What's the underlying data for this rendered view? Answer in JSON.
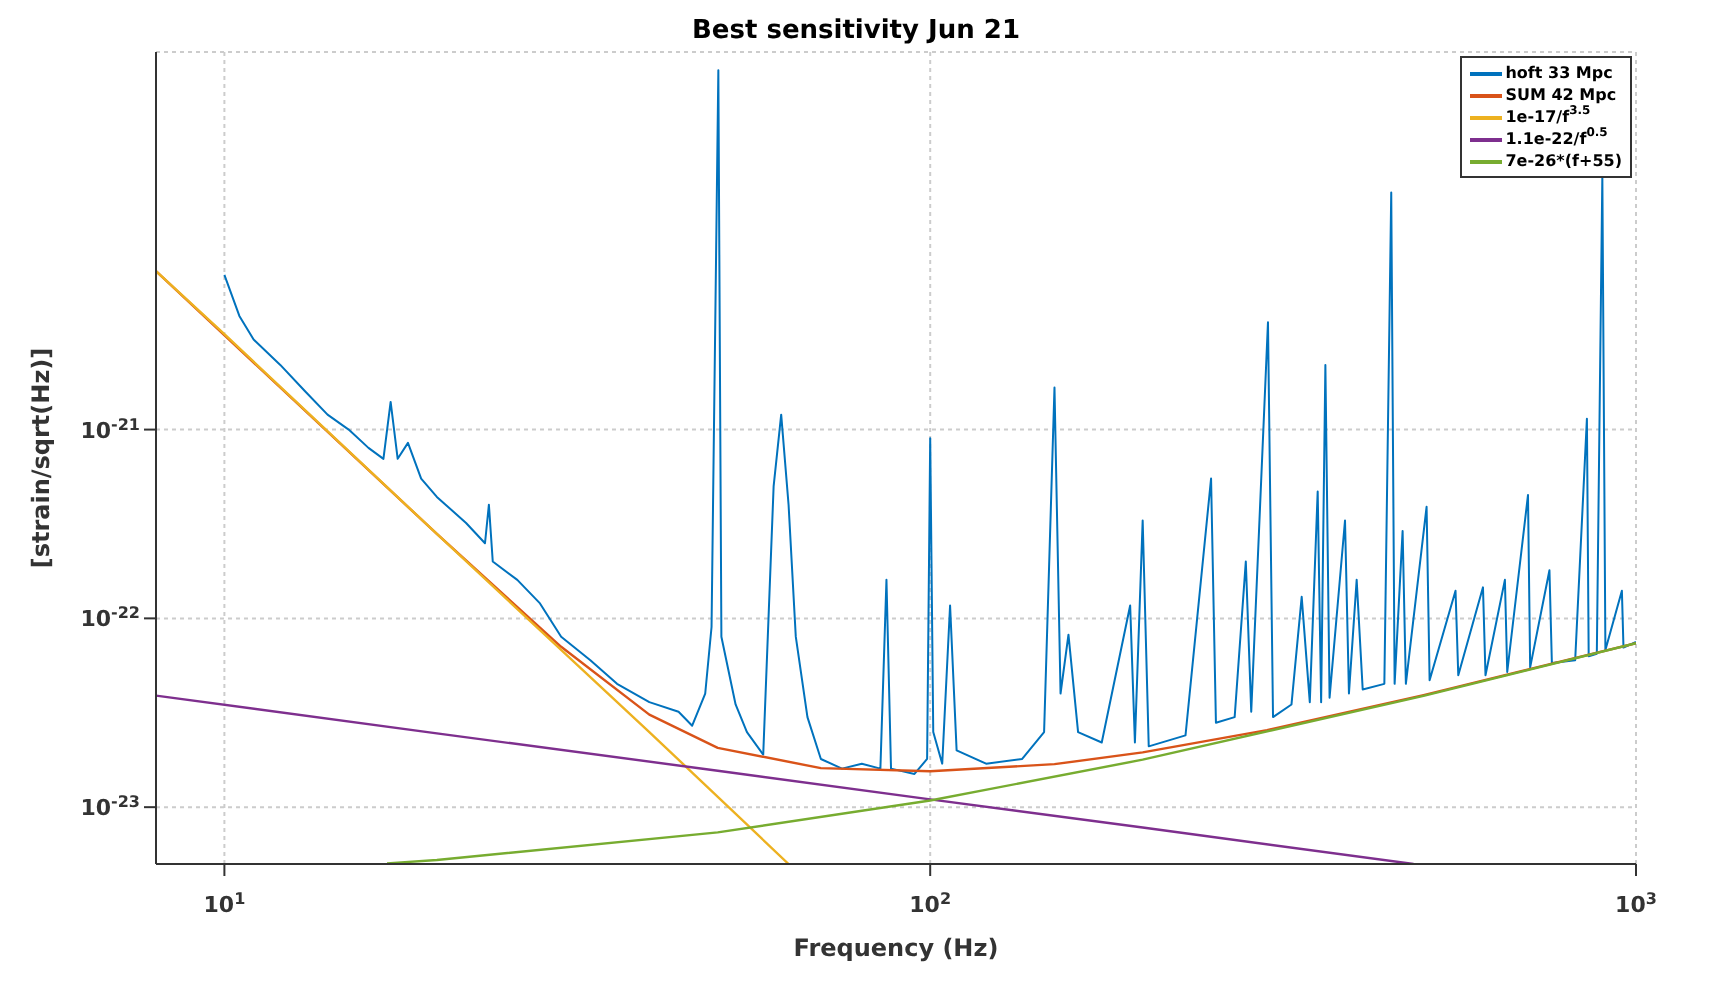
{
  "chart_data": {
    "type": "line",
    "title": "Best sensitivity Jun 21",
    "xlabel": "Frequency (Hz)",
    "ylabel": "[strain/sqrt(Hz)]",
    "log": "xy",
    "grid": true,
    "legend": "top right",
    "line_style": "solid",
    "marker": "none",
    "xlim": [
      8,
      1000
    ],
    "xticks": [
      {
        "value": 10,
        "label": "10$^{1}$"
      },
      {
        "value": 100,
        "label": "10$^{2}$"
      },
      {
        "value": 1000,
        "label": "10$^{3}$"
      }
    ],
    "ylim": [
      5e-24,
      1e-19
    ],
    "yticks": [
      {
        "value": 1e-23,
        "label": "10$^{-23}$"
      },
      {
        "value": 1e-22,
        "label": "10$^{-22}$"
      },
      {
        "value": 1e-21,
        "label": "10$^{-21}$"
      }
    ],
    "series": [
      {
        "name": "hoft 33 Mpc",
        "color": "#0072bd",
        "x": [
          10,
          10.5,
          11,
          12,
          13,
          14,
          15,
          16,
          16.8,
          17.2,
          17.6,
          18.2,
          19,
          20,
          22,
          23.4,
          23.7,
          24,
          26,
          28,
          30,
          33,
          36,
          40,
          44,
          46,
          48,
          49,
          50.1,
          50.6,
          53,
          55,
          58,
          60,
          61.5,
          63,
          64.5,
          67,
          70,
          75,
          80,
          85,
          86.7,
          88,
          95,
          99,
          100,
          101,
          104,
          106.7,
          109,
          120,
          135,
          145,
          150,
          153,
          157,
          162,
          175,
          192,
          195,
          200,
          204,
          230,
          250,
          254,
          270,
          280,
          285,
          301,
          306,
          325,
          336,
          345,
          354,
          358,
          363,
          368,
          387,
          392,
          402,
          410,
          440,
          450,
          455,
          467,
          472,
          505,
          510,
          555,
          560,
          607,
          612,
          652,
          657,
          703,
          708,
          754,
          760,
          820,
          852,
          857,
          880,
          896,
          905,
          955,
          960,
          1000
        ],
        "values": [
          6.6e-21,
          4e-21,
          3e-21,
          2.2e-21,
          1.6e-21,
          1.2e-21,
          1e-21,
          8e-22,
          7e-22,
          1.4e-21,
          7e-22,
          8.5e-22,
          5.5e-22,
          4.4e-22,
          3.2e-22,
          2.5e-22,
          4e-22,
          2e-22,
          1.6e-22,
          1.2e-22,
          8e-23,
          6e-23,
          4.5e-23,
          3.6e-23,
          3.2e-23,
          2.7e-23,
          4e-23,
          9e-23,
          8e-20,
          8e-23,
          3.5e-23,
          2.5e-23,
          1.9e-23,
          5e-22,
          1.2e-21,
          4e-22,
          8e-23,
          3e-23,
          1.8e-23,
          1.6e-23,
          1.7e-23,
          1.6e-23,
          1.6e-22,
          1.6e-23,
          1.5e-23,
          1.8e-23,
          9e-22,
          2.5e-23,
          1.7e-23,
          1.17e-22,
          2e-23,
          1.7e-23,
          1.8e-23,
          2.5e-23,
          1.67e-21,
          4e-23,
          8.2e-23,
          2.5e-23,
          2.2e-23,
          1.17e-22,
          2.2e-23,
          3.3e-22,
          2.1e-23,
          2.4e-23,
          5.5e-22,
          2.8e-23,
          3e-23,
          2e-22,
          3.2e-23,
          3.7e-21,
          3e-23,
          3.5e-23,
          1.3e-22,
          3.6e-23,
          4.7e-22,
          3.6e-23,
          2.2e-21,
          3.8e-23,
          3.3e-22,
          4e-23,
          1.6e-22,
          4.2e-23,
          4.5e-23,
          1.8e-20,
          4.5e-23,
          2.9e-22,
          4.5e-23,
          3.9e-22,
          4.7e-23,
          1.4e-22,
          5e-23,
          1.46e-22,
          5e-23,
          1.6e-22,
          5.2e-23,
          4.5e-22,
          5.5e-23,
          1.8e-22,
          5.8e-23,
          6e-23,
          1.14e-21,
          6.3e-23,
          6.5e-23,
          2.2e-20,
          6.8e-23,
          1.4e-22,
          7e-23,
          7.5e-23
        ]
      },
      {
        "name": "SUM 42 Mpc",
        "color": "#d95319",
        "x": [
          8,
          20,
          30,
          40,
          50,
          70,
          100,
          150,
          200,
          300,
          500,
          1000
        ],
        "values": [
          6.9e-21,
          2.8e-22,
          7.07e-23,
          3.09e-23,
          2.06e-23,
          1.61e-23,
          1.55e-23,
          1.69e-23,
          1.95e-23,
          2.56e-23,
          3.92e-23,
          7.39e-23
        ]
      },
      {
        "name": "1e-17/f$^{3.5}$",
        "color": "#edb120",
        "x": [
          8,
          10,
          20,
          40,
          63
        ],
        "values": [
          6.9e-21,
          3.2e-21,
          2.8e-22,
          2.5e-23,
          5e-24
        ]
      },
      {
        "name": "1.1e-22/f$^{0.5}$",
        "color": "#7e2f8e",
        "x": [
          8,
          20,
          50,
          100,
          200,
          484
        ],
        "values": [
          3.9e-23,
          2.46e-23,
          1.56e-23,
          1.1e-23,
          7.8e-24,
          5e-24
        ]
      },
      {
        "name": "7e-26*(f+55)",
        "color": "#77ac30",
        "x": [
          17,
          20,
          50,
          100,
          200,
          500,
          1000
        ],
        "values": [
          5.04e-24,
          5.25e-24,
          7.35e-24,
          1.085e-23,
          1.785e-23,
          3.885e-23,
          7.385e-23
        ]
      }
    ]
  }
}
